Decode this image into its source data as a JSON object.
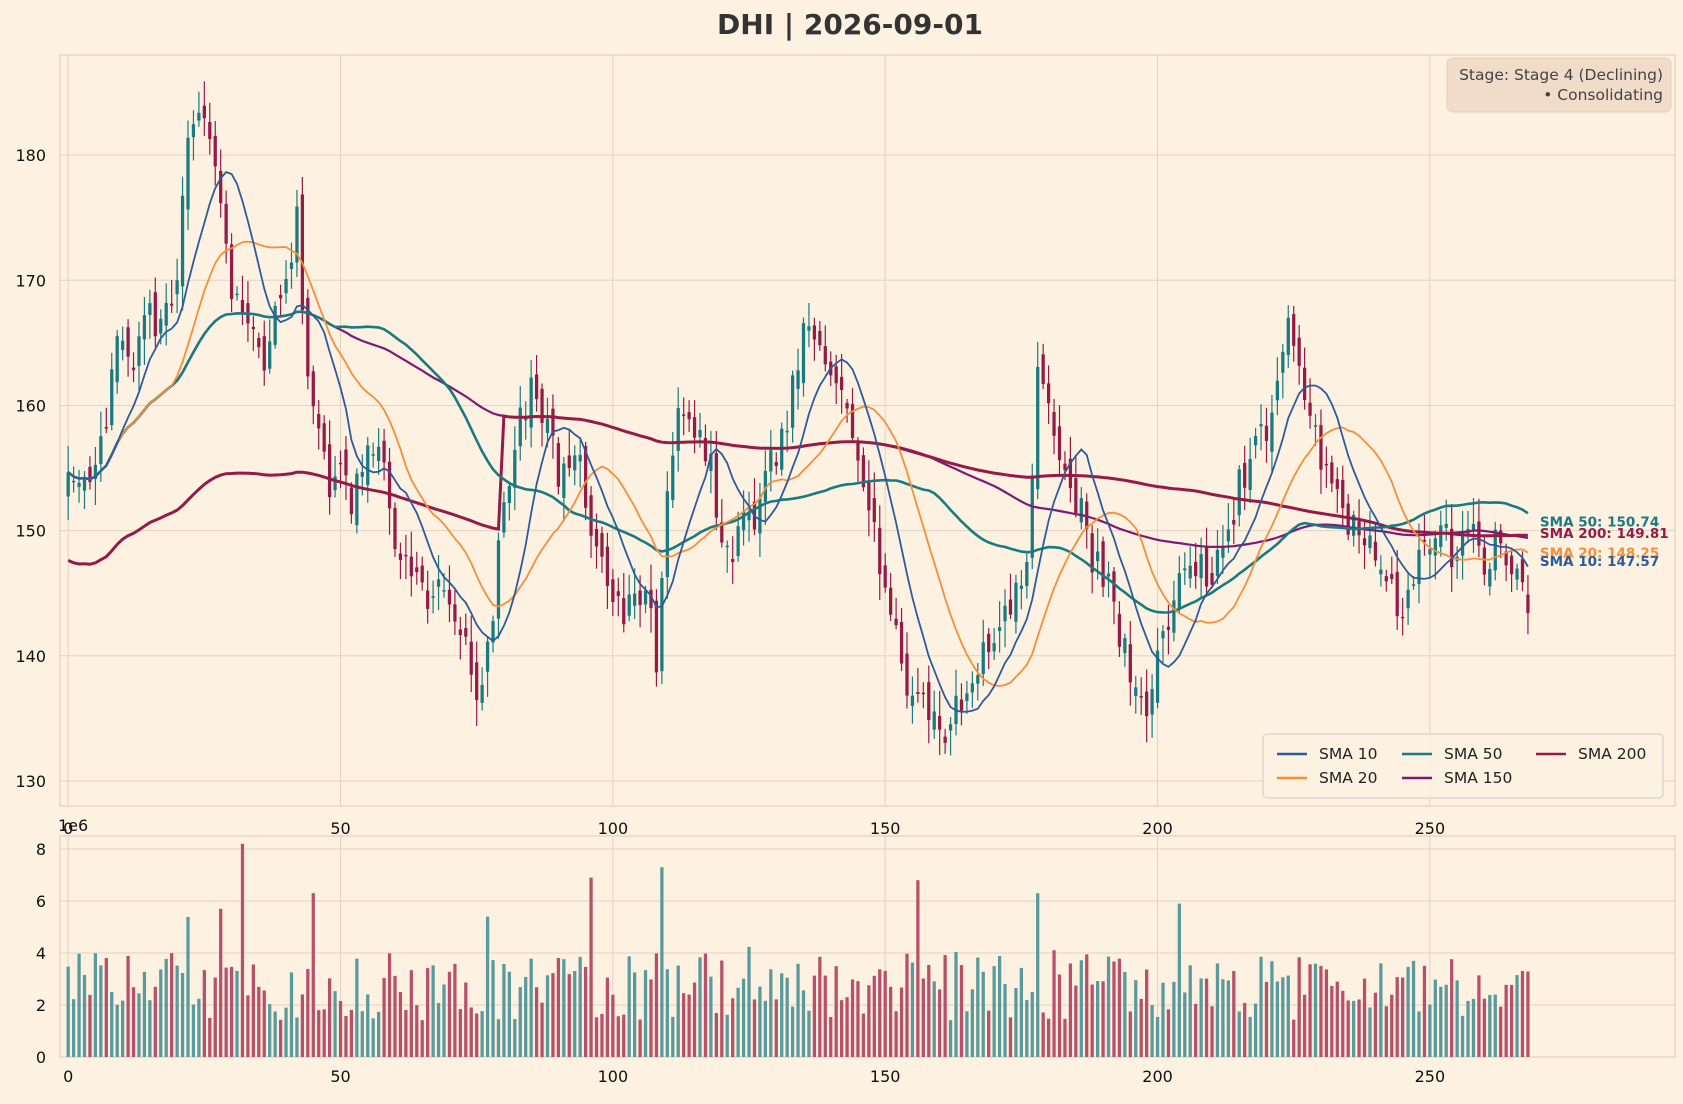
{
  "chart_data": [
    {
      "type": "candlestick",
      "title": "DHI | 2026-09-01",
      "x_ticks": [
        0,
        50,
        100,
        150,
        200,
        250
      ],
      "y_ticks": [
        130,
        140,
        150,
        160,
        170,
        180
      ],
      "xlim": [
        -1.5,
        295
      ],
      "ylim": [
        128,
        188
      ],
      "grid": true,
      "stage_box": {
        "line1": "Stage: Stage 4 (Declining)",
        "line2": "• Consolidating"
      },
      "legend": {
        "placement": "lower-right",
        "items": [
          {
            "label": "SMA 10",
            "color": "#2c5b9b"
          },
          {
            "label": "SMA 20",
            "color": "#f68e3a"
          },
          {
            "label": "SMA 50",
            "color": "#197a80"
          },
          {
            "label": "SMA 150",
            "color": "#7d1a74"
          },
          {
            "label": "SMA 200",
            "color": "#951b46"
          }
        ]
      },
      "end_labels": [
        {
          "text": "SMA 50: 150.74",
          "value": 150.74,
          "color": "#197a80"
        },
        {
          "text": "SMA 200: 149.81",
          "value": 149.81,
          "color": "#951b46"
        },
        {
          "text": "SMA 20: 148.25",
          "value": 148.25,
          "color": "#f68e3a"
        },
        {
          "text": "SMA 10: 147.57",
          "value": 147.57,
          "color": "#2c5b9b"
        }
      ],
      "colors": {
        "up": "#197a80",
        "down": "#951b46",
        "sma_dashed": "#22b0c0",
        "background": "#fdf1e1"
      },
      "price_keypoints": [
        [
          0,
          155
        ],
        [
          3,
          154
        ],
        [
          6,
          156
        ],
        [
          8,
          163
        ],
        [
          10,
          166
        ],
        [
          12,
          163
        ],
        [
          14,
          168
        ],
        [
          16,
          167
        ],
        [
          18,
          168
        ],
        [
          20,
          170
        ],
        [
          22,
          181
        ],
        [
          24,
          183
        ],
        [
          26,
          180
        ],
        [
          28,
          176
        ],
        [
          30,
          170
        ],
        [
          32,
          166
        ],
        [
          34,
          165
        ],
        [
          36,
          163
        ],
        [
          38,
          168
        ],
        [
          40,
          170
        ],
        [
          42,
          175
        ],
        [
          44,
          162
        ],
        [
          46,
          158
        ],
        [
          48,
          153
        ],
        [
          50,
          155
        ],
        [
          52,
          152
        ],
        [
          54,
          154
        ],
        [
          56,
          157
        ],
        [
          58,
          156
        ],
        [
          60,
          150
        ],
        [
          62,
          148
        ],
        [
          64,
          146
        ],
        [
          66,
          145
        ],
        [
          68,
          146
        ],
        [
          70,
          144
        ],
        [
          72,
          142
        ],
        [
          74,
          138
        ],
        [
          76,
          137
        ],
        [
          78,
          144
        ],
        [
          80,
          152
        ],
        [
          82,
          158
        ],
        [
          84,
          160
        ],
        [
          86,
          162
        ],
        [
          88,
          158
        ],
        [
          90,
          154
        ],
        [
          92,
          156
        ],
        [
          94,
          155
        ],
        [
          96,
          150
        ],
        [
          98,
          148
        ],
        [
          100,
          145
        ],
        [
          102,
          144
        ],
        [
          104,
          145
        ],
        [
          106,
          146
        ],
        [
          108,
          140
        ],
        [
          110,
          154
        ],
        [
          112,
          160
        ],
        [
          114,
          158
        ],
        [
          116,
          157
        ],
        [
          118,
          155
        ],
        [
          120,
          150
        ],
        [
          122,
          148
        ],
        [
          124,
          152
        ],
        [
          126,
          149
        ],
        [
          128,
          155
        ],
        [
          130,
          156
        ],
        [
          132,
          158
        ],
        [
          134,
          164
        ],
        [
          136,
          166
        ],
        [
          138,
          165
        ],
        [
          140,
          162
        ],
        [
          142,
          160
        ],
        [
          144,
          157
        ],
        [
          146,
          152
        ],
        [
          148,
          150
        ],
        [
          150,
          145
        ],
        [
          152,
          142
        ],
        [
          154,
          138
        ],
        [
          156,
          137
        ],
        [
          158,
          136
        ],
        [
          160,
          135
        ],
        [
          162,
          134
        ],
        [
          164,
          137
        ],
        [
          166,
          139
        ],
        [
          168,
          140
        ],
        [
          170,
          141
        ],
        [
          172,
          143
        ],
        [
          174,
          145
        ],
        [
          176,
          147
        ],
        [
          178,
          163
        ],
        [
          180,
          160
        ],
        [
          182,
          157
        ],
        [
          184,
          153
        ],
        [
          186,
          151
        ],
        [
          188,
          148
        ],
        [
          190,
          147
        ],
        [
          192,
          143
        ],
        [
          194,
          140
        ],
        [
          196,
          136
        ],
        [
          198,
          135
        ],
        [
          200,
          140
        ],
        [
          202,
          143
        ],
        [
          204,
          146
        ],
        [
          206,
          148
        ],
        [
          208,
          147
        ],
        [
          210,
          146
        ],
        [
          212,
          150
        ],
        [
          214,
          152
        ],
        [
          216,
          155
        ],
        [
          218,
          157
        ],
        [
          220,
          158
        ],
        [
          222,
          162
        ],
        [
          224,
          167
        ],
        [
          226,
          164
        ],
        [
          228,
          160
        ],
        [
          230,
          156
        ],
        [
          232,
          153
        ],
        [
          234,
          151
        ],
        [
          236,
          150
        ],
        [
          238,
          149
        ],
        [
          240,
          148
        ],
        [
          242,
          146
        ],
        [
          244,
          144
        ],
        [
          246,
          145
        ],
        [
          248,
          147
        ],
        [
          250,
          149
        ],
        [
          252,
          150
        ],
        [
          254,
          148
        ],
        [
          256,
          149
        ],
        [
          258,
          150
        ],
        [
          260,
          148
        ],
        [
          262,
          149
        ],
        [
          264,
          148
        ],
        [
          266,
          146
        ],
        [
          268,
          143
        ]
      ],
      "volume_axis": {
        "multiplier_label": "1e6",
        "y_ticks": [
          0,
          2,
          4,
          6,
          8
        ],
        "ylim": [
          0,
          8.5
        ]
      },
      "volume_spikes": [
        [
          32,
          8.2
        ],
        [
          109,
          7.3
        ],
        [
          96,
          6.9
        ],
        [
          156,
          6.8
        ],
        [
          178,
          6.3
        ],
        [
          204,
          5.9
        ],
        [
          28,
          5.7
        ],
        [
          45,
          6.3
        ],
        [
          77,
          5.4
        ]
      ]
    }
  ]
}
